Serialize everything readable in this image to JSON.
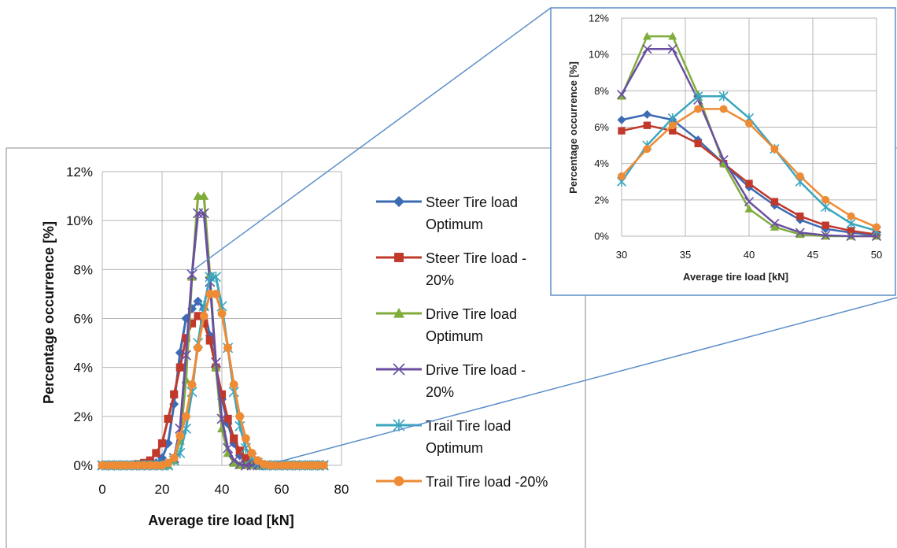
{
  "colors": {
    "steer_optimum": "#3d6bb3",
    "steer_20": "#c0392b",
    "drive_optimum": "#7fad3b",
    "drive_20": "#6a4fa0",
    "trail_optimum": "#3aa6bf",
    "trail_20": "#ee8b35",
    "grid": "#b5b5b5",
    "callout": "#5b8fc9"
  },
  "chart_data": [
    {
      "type": "line",
      "xlabel": "Average tire load [kN]",
      "ylabel": "Percentage occurrence [%]",
      "xlim": [
        0,
        80
      ],
      "ylim": [
        0,
        12
      ],
      "xticks": [
        "0",
        "20",
        "40",
        "60",
        "80"
      ],
      "yticks": [
        "0%",
        "2%",
        "4%",
        "6%",
        "8%",
        "10%",
        "12%"
      ],
      "grid": true,
      "legend_position": "right",
      "x": [
        0,
        2,
        4,
        6,
        8,
        10,
        12,
        14,
        16,
        18,
        20,
        22,
        24,
        26,
        28,
        30,
        32,
        34,
        36,
        38,
        40,
        42,
        44,
        46,
        48,
        50,
        52,
        54,
        56,
        58,
        60,
        62,
        64,
        66,
        68,
        70,
        72,
        74
      ],
      "series": [
        {
          "name": "Steer Tire load Optimum",
          "color_key": "steer_optimum",
          "marker": "diamond",
          "values": [
            0,
            0,
            0,
            0,
            0,
            0,
            0,
            0,
            0.05,
            0.1,
            0.3,
            0.9,
            2.5,
            4.6,
            6.0,
            6.4,
            6.7,
            6.4,
            5.3,
            4.0,
            2.7,
            1.7,
            0.9,
            0.4,
            0.2,
            0.05,
            0,
            0,
            0,
            0,
            0,
            0,
            0,
            0,
            0,
            0,
            0,
            0
          ]
        },
        {
          "name": "Steer Tire load -20%",
          "color_key": "steer_20",
          "marker": "square",
          "values": [
            0,
            0,
            0,
            0,
            0,
            0,
            0.05,
            0.1,
            0.2,
            0.5,
            0.9,
            1.9,
            2.9,
            4.0,
            5.2,
            5.8,
            6.1,
            5.8,
            5.1,
            4.0,
            2.9,
            1.9,
            1.1,
            0.6,
            0.3,
            0.1,
            0,
            0,
            0,
            0,
            0,
            0,
            0,
            0,
            0,
            0,
            0,
            0
          ]
        },
        {
          "name": "Drive Tire load Optimum",
          "color_key": "drive_optimum",
          "marker": "triangle",
          "values": [
            0,
            0,
            0,
            0,
            0,
            0,
            0,
            0,
            0,
            0,
            0,
            0,
            0.2,
            1.0,
            3.5,
            7.7,
            11.0,
            11.0,
            7.8,
            4.0,
            1.5,
            0.5,
            0.1,
            0,
            0,
            0,
            0,
            0,
            0,
            0,
            0,
            0,
            0,
            0,
            0,
            0,
            0,
            0
          ]
        },
        {
          "name": "Drive Tire load -20%",
          "color_key": "drive_20",
          "marker": "x",
          "values": [
            0,
            0,
            0,
            0,
            0,
            0,
            0,
            0,
            0,
            0,
            0,
            0,
            0.3,
            1.5,
            4.5,
            7.8,
            10.3,
            10.3,
            7.5,
            4.2,
            1.9,
            0.7,
            0.2,
            0.05,
            0,
            0,
            0,
            0,
            0,
            0,
            0,
            0,
            0,
            0,
            0,
            0,
            0,
            0
          ]
        },
        {
          "name": "Trail Tire load Optimum",
          "color_key": "trail_optimum",
          "marker": "star",
          "values": [
            0,
            0,
            0,
            0,
            0,
            0,
            0,
            0,
            0,
            0,
            0,
            0,
            0.2,
            0.5,
            1.5,
            3.0,
            5.0,
            6.5,
            7.7,
            7.7,
            6.5,
            4.8,
            3.0,
            1.6,
            0.7,
            0.3,
            0.1,
            0,
            0,
            0,
            0,
            0,
            0,
            0,
            0,
            0,
            0,
            0
          ]
        },
        {
          "name": "Trail Tire load -20%",
          "color_key": "trail_20",
          "marker": "circle",
          "values": [
            0,
            0,
            0,
            0,
            0,
            0,
            0,
            0,
            0,
            0,
            0,
            0.1,
            0.3,
            1.2,
            2.0,
            3.3,
            4.8,
            6.1,
            7.0,
            7.0,
            6.2,
            4.8,
            3.3,
            2.0,
            1.1,
            0.5,
            0.2,
            0.05,
            0,
            0,
            0,
            0,
            0,
            0,
            0,
            0,
            0,
            0
          ]
        }
      ]
    },
    {
      "type": "line",
      "xlabel": "Average tire load [kN]",
      "ylabel": "Percentage occurrence [%]",
      "xlim": [
        30,
        50
      ],
      "ylim": [
        0,
        12
      ],
      "xticks": [
        "30",
        "35",
        "40",
        "45",
        "50"
      ],
      "yticks": [
        "0%",
        "2%",
        "4%",
        "6%",
        "8%",
        "10%",
        "12%"
      ],
      "grid": true,
      "x": [
        30,
        32,
        34,
        36,
        38,
        40,
        42,
        44,
        46,
        48,
        50
      ],
      "series": [
        {
          "color_key": "steer_optimum",
          "marker": "diamond",
          "values": [
            6.4,
            6.7,
            6.4,
            5.3,
            4.0,
            2.7,
            1.7,
            0.9,
            0.4,
            0.2,
            0.05
          ]
        },
        {
          "color_key": "steer_20",
          "marker": "square",
          "values": [
            5.8,
            6.1,
            5.8,
            5.1,
            4.0,
            2.9,
            1.9,
            1.1,
            0.6,
            0.3,
            0.1
          ]
        },
        {
          "color_key": "drive_optimum",
          "marker": "triangle",
          "values": [
            7.7,
            11.0,
            11.0,
            7.8,
            4.0,
            1.5,
            0.5,
            0.1,
            0,
            0,
            0
          ]
        },
        {
          "color_key": "drive_20",
          "marker": "x",
          "values": [
            7.8,
            10.3,
            10.3,
            7.5,
            4.2,
            1.9,
            0.7,
            0.2,
            0.05,
            0,
            0
          ]
        },
        {
          "color_key": "trail_optimum",
          "marker": "star",
          "values": [
            3.0,
            5.0,
            6.5,
            7.7,
            7.7,
            6.5,
            4.8,
            3.0,
            1.6,
            0.7,
            0.3
          ]
        },
        {
          "color_key": "trail_20",
          "marker": "circle",
          "values": [
            3.3,
            4.8,
            6.1,
            7.0,
            7.0,
            6.2,
            4.8,
            3.3,
            2.0,
            1.1,
            0.5
          ]
        }
      ]
    }
  ]
}
